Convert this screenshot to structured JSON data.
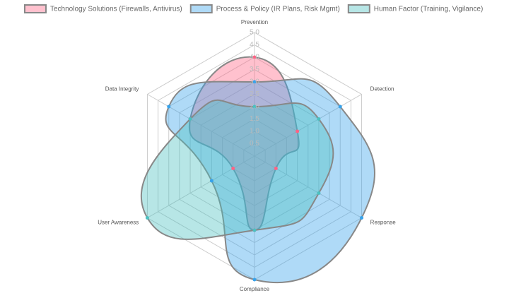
{
  "chart_data": {
    "type": "radar",
    "categories": [
      "Prevention",
      "Detection",
      "Response",
      "Compliance",
      "User Awareness",
      "Data Integrity"
    ],
    "series": [
      {
        "name": "Technology Solutions (Firewalls, Antivirus)",
        "color": "#ff6384",
        "values": [
          4,
          2,
          1,
          3,
          1,
          3
        ]
      },
      {
        "name": "Process & Policy (IR Plans, Risk Mgmt)",
        "color": "#36a2eb",
        "values": [
          3,
          4,
          5,
          5,
          2,
          4
        ]
      },
      {
        "name": "Human Factor (Training, Vigilance)",
        "color": "#4bc0c0",
        "values": [
          2,
          3,
          3,
          3,
          5,
          3
        ]
      }
    ],
    "rlim": [
      0,
      5
    ],
    "rticks": [
      0.5,
      {
        "value": 1,
        "label": "1.0"
      },
      1.5,
      {
        "value": 2,
        "label": "2.0"
      },
      2.5,
      {
        "value": 3,
        "label": "3.0"
      },
      3.5,
      {
        "value": 4,
        "label": "4.0"
      },
      4.5,
      {
        "value": 5,
        "label": "5.0"
      }
    ],
    "grid": true
  }
}
